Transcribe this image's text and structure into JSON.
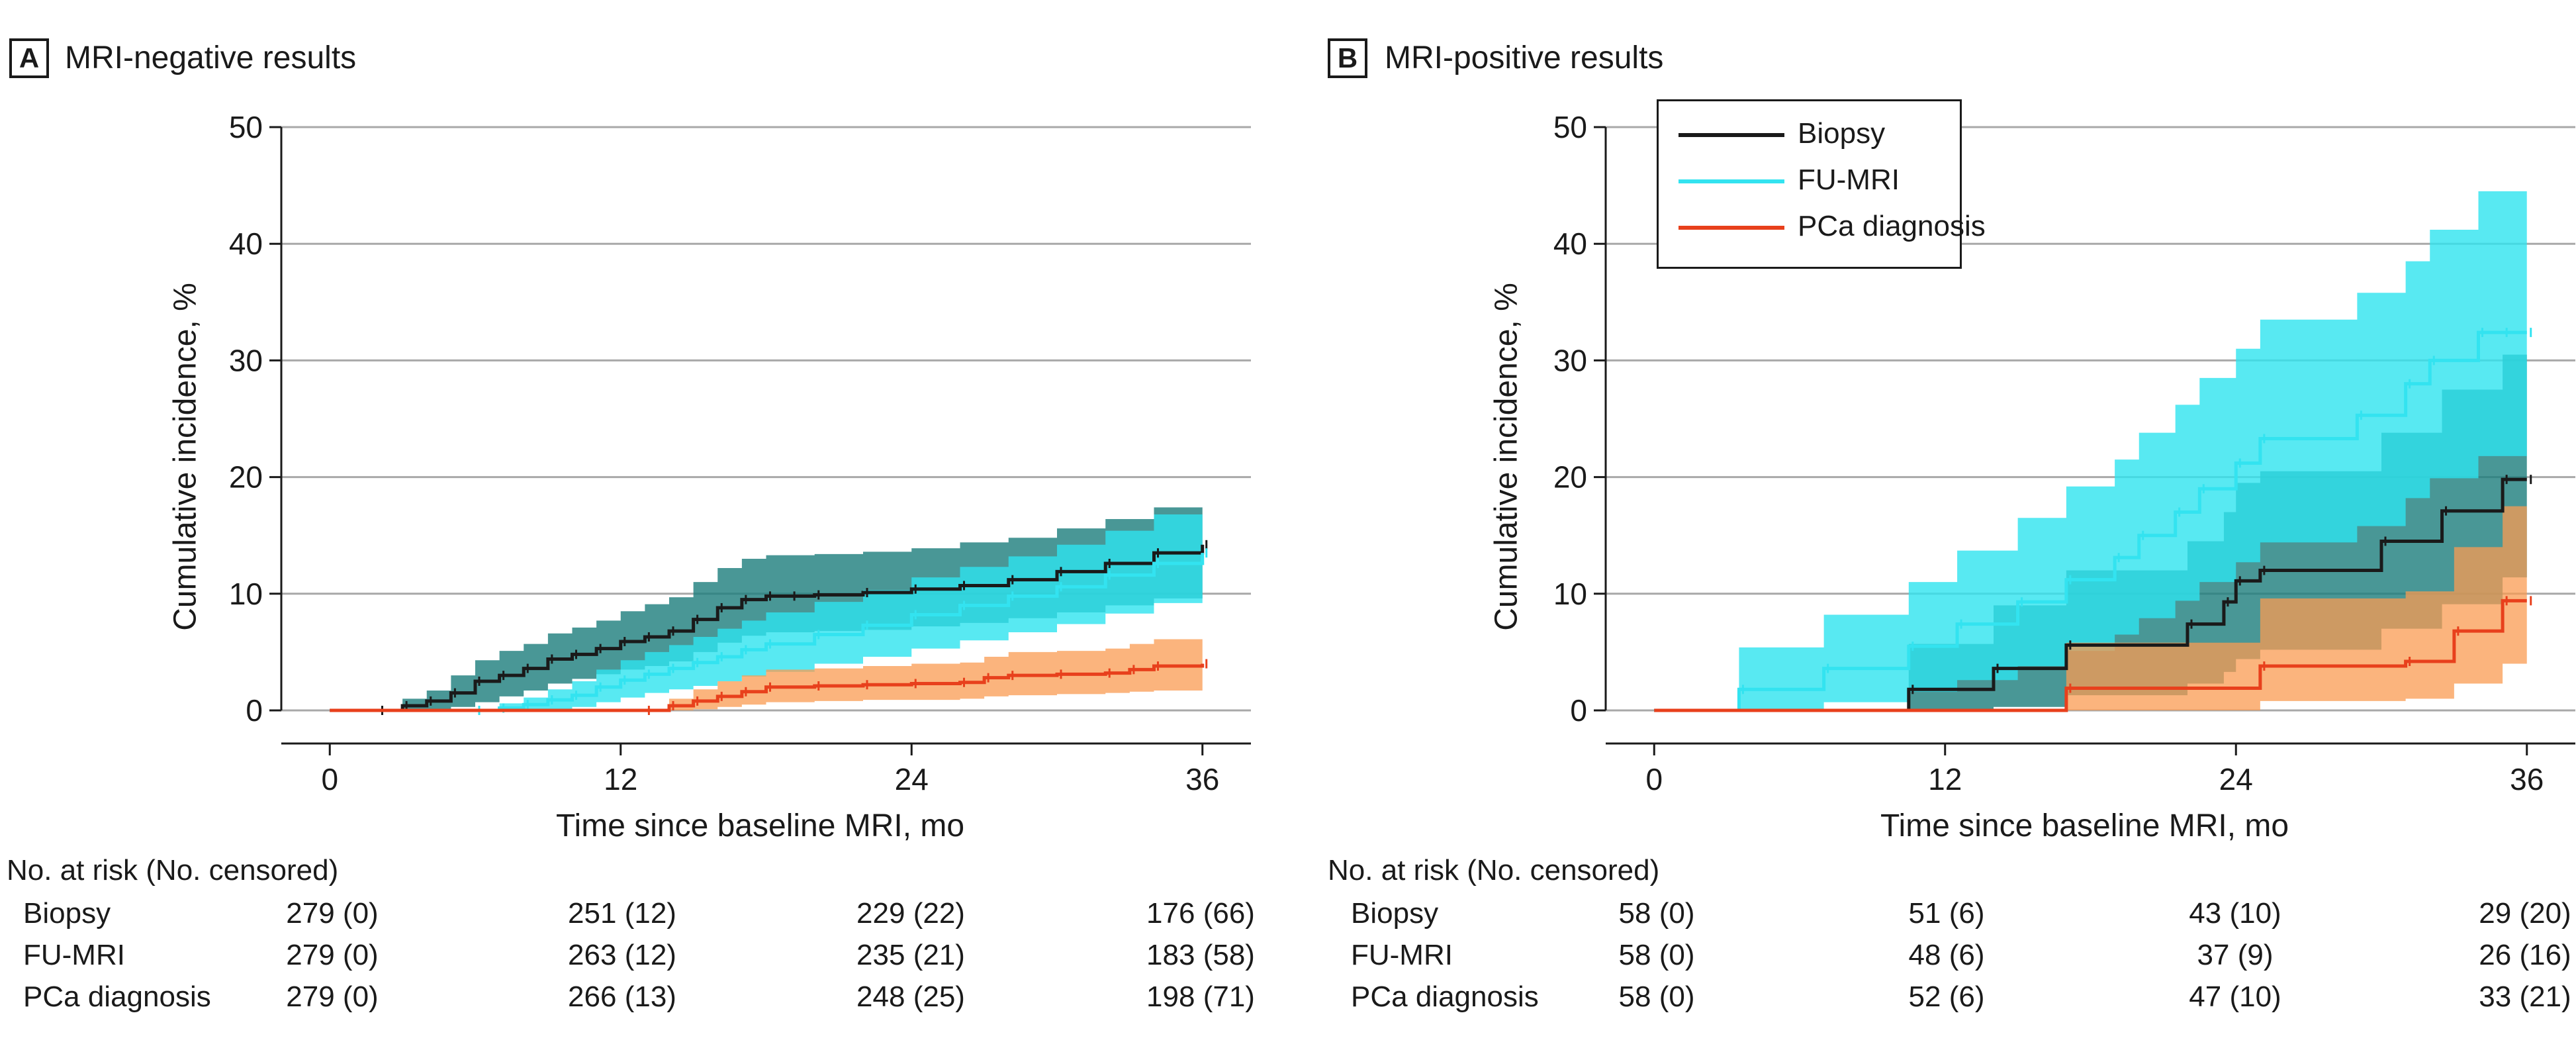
{
  "colors": {
    "biopsy": "#1a1a1a",
    "fu_mri": "#33e3f0",
    "pca": "#e8401c",
    "ci_biopsy": "#1b7d7c",
    "ci_fu_mri": "#2ee4ef",
    "ci_pca": "#f99b52",
    "grid": "#a8a8a8"
  },
  "legend": [
    {
      "key": "biopsy",
      "label": "Biopsy"
    },
    {
      "key": "fu_mri",
      "label": "FU-MRI"
    },
    {
      "key": "pca",
      "label": "PCa diagnosis"
    }
  ],
  "panels": [
    {
      "letter": "A",
      "title": "MRI-negative results",
      "risk_header": "No. at risk (No. censored)",
      "risk_table": [
        {
          "label": "Biopsy",
          "cells": [
            "279 (0)",
            "251 (12)",
            "229 (22)",
            "176 (66)"
          ]
        },
        {
          "label": "FU-MRI",
          "cells": [
            "279 (0)",
            "263 (12)",
            "235 (21)",
            "183 (58)"
          ]
        },
        {
          "label": "PCa diagnosis",
          "cells": [
            "279 (0)",
            "266 (13)",
            "248 (25)",
            "198 (71)"
          ]
        }
      ]
    },
    {
      "letter": "B",
      "title": "MRI-positive results",
      "risk_header": "No. at risk (No. censored)",
      "risk_table": [
        {
          "label": "Biopsy",
          "cells": [
            "58 (0)",
            "51 (6)",
            "43 (10)",
            "29 (20)"
          ]
        },
        {
          "label": "FU-MRI",
          "cells": [
            "58 (0)",
            "48 (6)",
            "37 (9)",
            "26 (16)"
          ]
        },
        {
          "label": "PCa diagnosis",
          "cells": [
            "58 (0)",
            "52 (6)",
            "47 (10)",
            "33 (21)"
          ]
        }
      ]
    }
  ],
  "chart_data": [
    {
      "type": "line",
      "title": "MRI-negative results",
      "xlabel": "Time since baseline MRI, mo",
      "ylabel": "Cumulative incidence, %",
      "xlim": [
        -2,
        38
      ],
      "ylim": [
        0,
        50
      ],
      "xticks": [
        0,
        12,
        24,
        36
      ],
      "yticks": [
        0,
        10,
        20,
        30,
        40,
        50
      ],
      "grid": true,
      "series": [
        {
          "name": "Biopsy",
          "key": "biopsy",
          "x": [
            0,
            2,
            3,
            4,
            5,
            6,
            7,
            8,
            9,
            10,
            11,
            12,
            13,
            14,
            15,
            16,
            17,
            18,
            19,
            20,
            22,
            24,
            26,
            28,
            30,
            32,
            34,
            36
          ],
          "y": [
            0,
            0,
            0.4,
            0.8,
            1.5,
            2.5,
            3,
            3.6,
            4.4,
            4.8,
            5.3,
            5.9,
            6.3,
            6.8,
            7.8,
            8.8,
            9.5,
            9.8,
            9.8,
            9.9,
            10.1,
            10.4,
            10.7,
            11.2,
            11.9,
            12.6,
            13.5,
            14.2
          ],
          "ci_lower": [
            0,
            0,
            0,
            0,
            0.3,
            0.7,
            1.2,
            1.7,
            2.3,
            2.7,
            3.1,
            3.5,
            3.8,
            4.2,
            5,
            5.8,
            6.4,
            6.7,
            6.7,
            6.8,
            6.9,
            7.2,
            7.5,
            7.9,
            8.4,
            9,
            9.6,
            10
          ],
          "ci_upper": [
            0,
            0,
            1,
            1.7,
            3,
            4.3,
            5.1,
            5.7,
            6.6,
            7.1,
            7.7,
            8.5,
            9.1,
            9.7,
            11,
            12.2,
            13,
            13.3,
            13.3,
            13.4,
            13.6,
            13.9,
            14.4,
            14.8,
            15.6,
            16.4,
            17.4,
            18.5
          ]
        },
        {
          "name": "FU-MRI",
          "key": "fu_mri",
          "x": [
            0,
            6,
            7,
            8,
            9,
            10,
            11,
            12,
            13,
            14,
            15,
            16,
            17,
            18,
            20,
            22,
            24,
            26,
            28,
            30,
            32,
            34,
            36
          ],
          "y": [
            0,
            0,
            0.2,
            0.5,
            0.9,
            1.3,
            2,
            2.6,
            3.1,
            3.6,
            4.1,
            4.6,
            5.2,
            5.7,
            6.5,
            7.3,
            8.2,
            9,
            9.8,
            10.6,
            11.6,
            12.6,
            13.5
          ],
          "ci_lower": [
            0,
            0,
            0,
            0,
            0.1,
            0.3,
            0.7,
            1.1,
            1.5,
            1.8,
            2.1,
            2.5,
            2.9,
            3.3,
            4,
            4.6,
            5.3,
            6,
            6.7,
            7.4,
            8.3,
            9.2,
            9.9
          ],
          "ci_upper": [
            0,
            0,
            0.6,
            1.1,
            1.8,
            2.5,
            3.5,
            4.3,
            5,
            5.6,
            6.3,
            7,
            7.7,
            8.4,
            9.3,
            10.3,
            11.4,
            12.3,
            13.2,
            14.2,
            15.4,
            16.8,
            19.2
          ]
        },
        {
          "name": "PCa diagnosis",
          "key": "pca",
          "x": [
            0,
            13,
            14,
            15,
            16,
            17,
            18,
            20,
            22,
            24,
            26,
            27,
            28,
            30,
            32,
            33,
            34,
            36
          ],
          "y": [
            0,
            0,
            0.4,
            0.8,
            1.2,
            1.6,
            2,
            2.1,
            2.2,
            2.3,
            2.4,
            2.8,
            3,
            3.1,
            3.2,
            3.5,
            3.8,
            4
          ],
          "ci_lower": [
            0,
            0,
            0,
            0.1,
            0.3,
            0.5,
            0.7,
            0.8,
            0.9,
            0.9,
            1,
            1.2,
            1.3,
            1.4,
            1.5,
            1.6,
            1.7,
            1.8
          ],
          "ci_upper": [
            0,
            0,
            1,
            1.8,
            2.5,
            3,
            3.5,
            3.6,
            3.8,
            4,
            4.1,
            4.6,
            5,
            5.1,
            5.3,
            5.7,
            6.1,
            6.5
          ]
        }
      ]
    },
    {
      "type": "line",
      "title": "MRI-positive results",
      "xlabel": "Time since baseline MRI, mo",
      "ylabel": "Cumulative incidence, %",
      "xlim": [
        -2,
        38
      ],
      "ylim": [
        0,
        50
      ],
      "xticks": [
        0,
        12,
        24,
        36
      ],
      "yticks": [
        0,
        10,
        20,
        30,
        40,
        50
      ],
      "grid": true,
      "legend_position": "top-left",
      "series": [
        {
          "name": "Biopsy",
          "key": "biopsy",
          "x": [
            0,
            10.5,
            14,
            17,
            22,
            23.5,
            24,
            25,
            30,
            32.5,
            35,
            36
          ],
          "y": [
            0,
            1.8,
            3.6,
            5.6,
            7.4,
            9.3,
            11.1,
            12,
            14.5,
            17.1,
            19.8,
            19.8
          ],
          "ci_lower": [
            0,
            0,
            0.3,
            1.3,
            2.3,
            3.3,
            4.4,
            5.2,
            7,
            9.1,
            11.4,
            11.4
          ],
          "ci_upper": [
            0,
            5.7,
            9,
            12,
            14.5,
            17,
            19.5,
            20.5,
            23.8,
            27.5,
            30.5,
            30.5
          ]
        },
        {
          "name": "FU-MRI",
          "key": "fu_mri",
          "x": [
            0,
            3.5,
            7,
            10.5,
            12.5,
            15,
            17,
            19,
            20,
            21.5,
            22.5,
            24,
            25,
            29,
            31,
            32,
            34,
            35,
            36
          ],
          "y": [
            0,
            1.8,
            3.6,
            5.5,
            7.4,
            9.3,
            11.2,
            13.1,
            15,
            17,
            19,
            21.2,
            23.3,
            25.3,
            28,
            30,
            32.4,
            32.4,
            32.4
          ],
          "ci_lower": [
            0,
            0,
            0.7,
            1.6,
            2.6,
            3.8,
            5.1,
            6.5,
            7.9,
            9.4,
            11,
            12.7,
            14.4,
            15.8,
            18.2,
            19.9,
            21.8,
            21.8,
            21.8
          ],
          "ci_upper": [
            0,
            5.4,
            8.2,
            11,
            13.7,
            16.5,
            19.2,
            21.5,
            23.8,
            26.2,
            28.5,
            31,
            33.5,
            35.8,
            38.5,
            41.2,
            44.5,
            44.5,
            44.5
          ]
        },
        {
          "name": "PCa diagnosis",
          "key": "pca",
          "x": [
            0,
            17,
            25,
            31,
            33,
            35,
            36
          ],
          "y": [
            0,
            1.9,
            3.8,
            4.2,
            6.8,
            9.4,
            9.4
          ],
          "ci_lower": [
            0,
            0,
            0.8,
            1,
            2.3,
            4,
            4
          ],
          "ci_upper": [
            0,
            5.8,
            9.6,
            10.2,
            14,
            17.5,
            17.5
          ]
        }
      ]
    }
  ]
}
